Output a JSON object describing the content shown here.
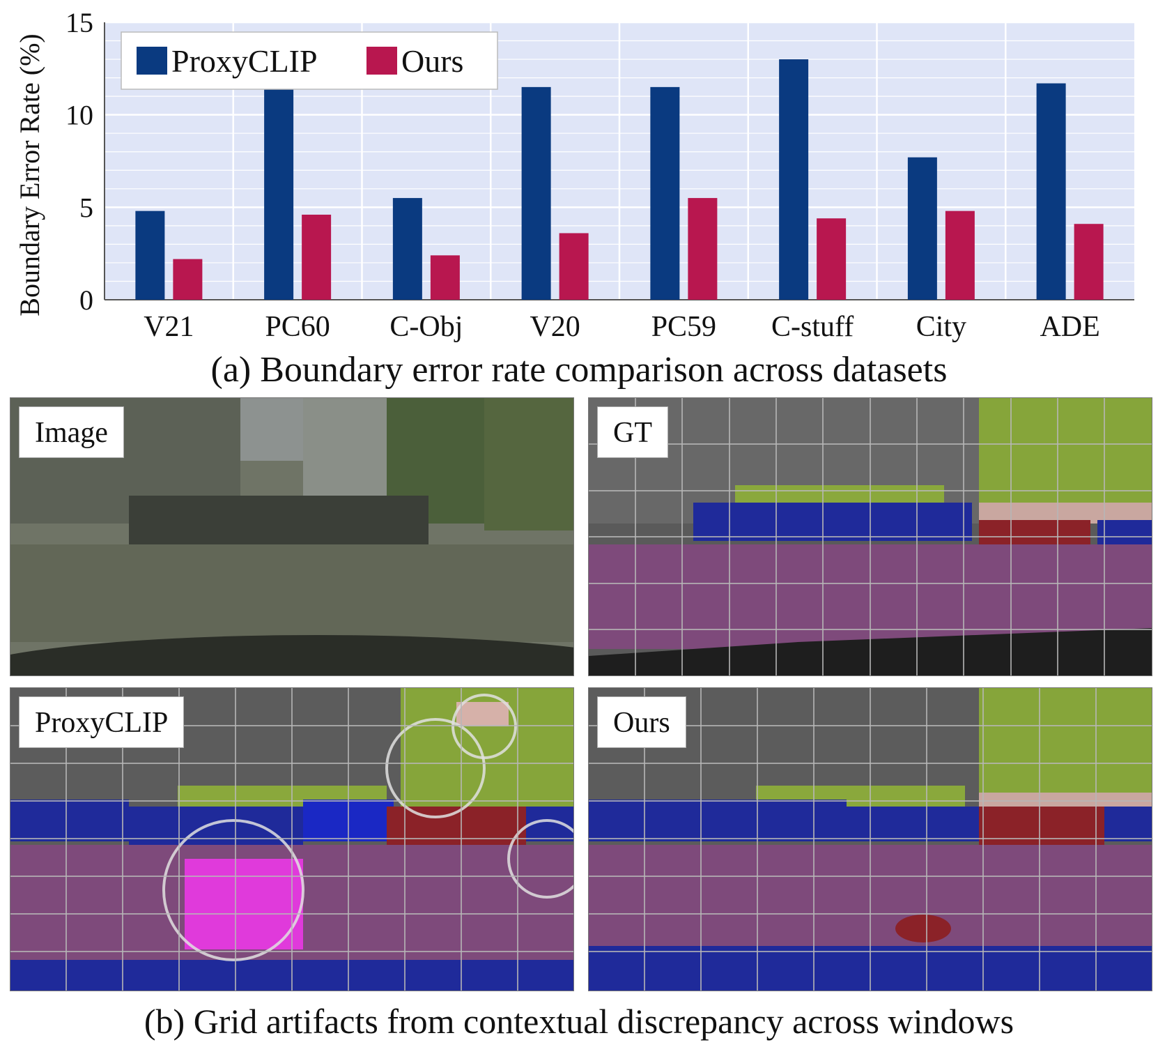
{
  "chart_data": {
    "type": "bar",
    "categories": [
      "V21",
      "PC60",
      "C-Obj",
      "V20",
      "PC59",
      "C-stuff",
      "City",
      "ADE"
    ],
    "series": [
      {
        "name": "ProxyCLIP",
        "values": [
          4.8,
          11.5,
          5.5,
          11.5,
          11.5,
          13.0,
          7.7,
          11.7
        ]
      },
      {
        "name": "Ours",
        "values": [
          2.2,
          4.6,
          2.4,
          3.6,
          5.5,
          4.4,
          4.8,
          4.1
        ]
      }
    ],
    "ylabel": "Boundary Error Rate (%)",
    "ylim": [
      0,
      15
    ],
    "yticks": [
      0,
      5,
      10,
      15
    ],
    "grid": true,
    "legend_position": "top-left",
    "colors": {
      "ProxyCLIP": "#0a3a80",
      "Ours": "#b8174f",
      "plot_bg": "#dfe5f7",
      "grid": "#ffffff"
    }
  },
  "captions": {
    "a": "(a) Boundary error rate comparison across datasets",
    "b": "(b) Grid artifacts from contextual discrepancy across windows"
  },
  "panels": {
    "image": "Image",
    "gt": "GT",
    "proxyclip": "ProxyCLIP",
    "ours": "Ours"
  }
}
